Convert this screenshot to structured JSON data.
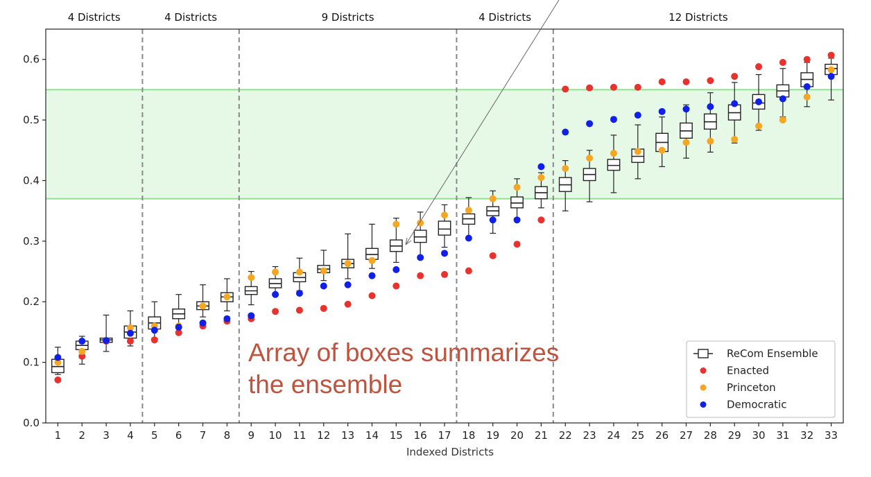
{
  "chart_data": {
    "type": "box",
    "xlabel": "Indexed Districts",
    "ylabel": "",
    "ylim": [
      0,
      0.65
    ],
    "yticks": [
      "0.0",
      "0.1",
      "0.2",
      "0.3",
      "0.4",
      "0.5",
      "0.6"
    ],
    "categories": [
      "1",
      "2",
      "3",
      "4",
      "5",
      "6",
      "7",
      "8",
      "9",
      "10",
      "11",
      "12",
      "13",
      "14",
      "15",
      "16",
      "17",
      "18",
      "19",
      "20",
      "21",
      "22",
      "23",
      "24",
      "25",
      "26",
      "27",
      "28",
      "29",
      "30",
      "31",
      "32",
      "33"
    ],
    "groups": [
      {
        "label": "4 Districts",
        "from": 1,
        "to": 4
      },
      {
        "label": "4 Districts",
        "from": 5,
        "to": 8
      },
      {
        "label": "9 Districts",
        "from": 9,
        "to": 17
      },
      {
        "label": "4 Districts",
        "from": 18,
        "to": 21
      },
      {
        "label": "12 Districts",
        "from": 22,
        "to": 33
      }
    ],
    "shaded_band": {
      "from": 0.37,
      "to": 0.55,
      "color": "#e6f9e6",
      "line_color": "#8fe08f"
    },
    "ensemble": {
      "name": "ReCom Ensemble",
      "boxes": [
        {
          "low": 0.08,
          "q1": 0.083,
          "median": 0.093,
          "q3": 0.105,
          "high": 0.125
        },
        {
          "low": 0.097,
          "q1": 0.121,
          "median": 0.128,
          "q3": 0.135,
          "high": 0.143
        },
        {
          "low": 0.118,
          "q1": 0.133,
          "median": 0.137,
          "q3": 0.14,
          "high": 0.178
        },
        {
          "low": 0.127,
          "q1": 0.14,
          "median": 0.15,
          "q3": 0.16,
          "high": 0.185
        },
        {
          "low": 0.14,
          "q1": 0.155,
          "median": 0.165,
          "q3": 0.175,
          "high": 0.2
        },
        {
          "low": 0.158,
          "q1": 0.172,
          "median": 0.18,
          "q3": 0.188,
          "high": 0.212
        },
        {
          "low": 0.175,
          "q1": 0.187,
          "median": 0.193,
          "q3": 0.2,
          "high": 0.228
        },
        {
          "low": 0.185,
          "q1": 0.2,
          "median": 0.208,
          "q3": 0.215,
          "high": 0.238
        },
        {
          "low": 0.195,
          "q1": 0.212,
          "median": 0.218,
          "q3": 0.225,
          "high": 0.25
        },
        {
          "low": 0.21,
          "q1": 0.223,
          "median": 0.23,
          "q3": 0.238,
          "high": 0.258
        },
        {
          "low": 0.218,
          "q1": 0.233,
          "median": 0.24,
          "q3": 0.248,
          "high": 0.272
        },
        {
          "low": 0.235,
          "q1": 0.248,
          "median": 0.254,
          "q3": 0.26,
          "high": 0.285
        },
        {
          "low": 0.238,
          "q1": 0.256,
          "median": 0.263,
          "q3": 0.27,
          "high": 0.312
        },
        {
          "low": 0.255,
          "q1": 0.27,
          "median": 0.278,
          "q3": 0.288,
          "high": 0.328
        },
        {
          "low": 0.265,
          "q1": 0.283,
          "median": 0.292,
          "q3": 0.302,
          "high": 0.338
        },
        {
          "low": 0.275,
          "q1": 0.298,
          "median": 0.307,
          "q3": 0.318,
          "high": 0.348
        },
        {
          "low": 0.29,
          "q1": 0.31,
          "median": 0.32,
          "q3": 0.333,
          "high": 0.36
        },
        {
          "low": 0.305,
          "q1": 0.328,
          "median": 0.337,
          "q3": 0.345,
          "high": 0.372
        },
        {
          "low": 0.313,
          "q1": 0.342,
          "median": 0.35,
          "q3": 0.357,
          "high": 0.383
        },
        {
          "low": 0.338,
          "q1": 0.355,
          "median": 0.363,
          "q3": 0.373,
          "high": 0.403
        },
        {
          "low": 0.355,
          "q1": 0.37,
          "median": 0.38,
          "q3": 0.39,
          "high": 0.413
        },
        {
          "low": 0.35,
          "q1": 0.382,
          "median": 0.393,
          "q3": 0.405,
          "high": 0.433
        },
        {
          "low": 0.365,
          "q1": 0.4,
          "median": 0.41,
          "q3": 0.42,
          "high": 0.45
        },
        {
          "low": 0.38,
          "q1": 0.417,
          "median": 0.425,
          "q3": 0.435,
          "high": 0.475
        },
        {
          "low": 0.403,
          "q1": 0.43,
          "median": 0.44,
          "q3": 0.452,
          "high": 0.492
        },
        {
          "low": 0.423,
          "q1": 0.448,
          "median": 0.463,
          "q3": 0.478,
          "high": 0.505
        },
        {
          "low": 0.437,
          "q1": 0.47,
          "median": 0.482,
          "q3": 0.495,
          "high": 0.525
        },
        {
          "low": 0.447,
          "q1": 0.485,
          "median": 0.497,
          "q3": 0.51,
          "high": 0.545
        },
        {
          "low": 0.462,
          "q1": 0.5,
          "median": 0.512,
          "q3": 0.525,
          "high": 0.562
        },
        {
          "low": 0.483,
          "q1": 0.518,
          "median": 0.528,
          "q3": 0.542,
          "high": 0.575
        },
        {
          "low": 0.505,
          "q1": 0.538,
          "median": 0.548,
          "q3": 0.558,
          "high": 0.585
        },
        {
          "low": 0.522,
          "q1": 0.555,
          "median": 0.567,
          "q3": 0.578,
          "high": 0.595
        },
        {
          "low": 0.533,
          "q1": 0.575,
          "median": 0.585,
          "q3": 0.592,
          "high": 0.602
        }
      ]
    },
    "series": [
      {
        "name": "Enacted",
        "color": "#e8322e",
        "values": [
          0.071,
          0.11,
          0.135,
          0.135,
          0.137,
          0.149,
          0.16,
          0.168,
          0.172,
          0.184,
          0.186,
          0.189,
          0.196,
          0.21,
          0.226,
          0.243,
          0.245,
          0.251,
          0.276,
          0.295,
          0.335,
          0.551,
          0.553,
          0.554,
          0.554,
          0.563,
          0.563,
          0.565,
          0.572,
          0.588,
          0.595,
          0.6,
          0.607
        ]
      },
      {
        "name": "Princeton",
        "color": "#f5a623",
        "values": [
          0.1,
          0.118,
          0.136,
          0.157,
          0.16,
          0.16,
          0.193,
          0.208,
          0.24,
          0.249,
          0.249,
          0.251,
          0.263,
          0.268,
          0.328,
          0.33,
          0.343,
          0.351,
          0.37,
          0.389,
          0.405,
          0.42,
          0.437,
          0.445,
          0.448,
          0.45,
          0.463,
          0.465,
          0.468,
          0.49,
          0.5,
          0.538,
          0.583
        ]
      },
      {
        "name": "Democratic",
        "color": "#1020e8",
        "values": [
          0.108,
          0.135,
          0.136,
          0.148,
          0.153,
          0.158,
          0.165,
          0.172,
          0.177,
          0.212,
          0.214,
          0.226,
          0.228,
          0.243,
          0.253,
          0.273,
          0.28,
          0.305,
          0.335,
          0.335,
          0.423,
          0.48,
          0.494,
          0.501,
          0.508,
          0.514,
          0.518,
          0.522,
          0.527,
          0.53,
          0.535,
          0.555,
          0.572
        ]
      }
    ],
    "legend_position": "bottom-right",
    "annotation": {
      "line1": "Array of boxes summarizes",
      "line2": "the ensemble"
    }
  }
}
